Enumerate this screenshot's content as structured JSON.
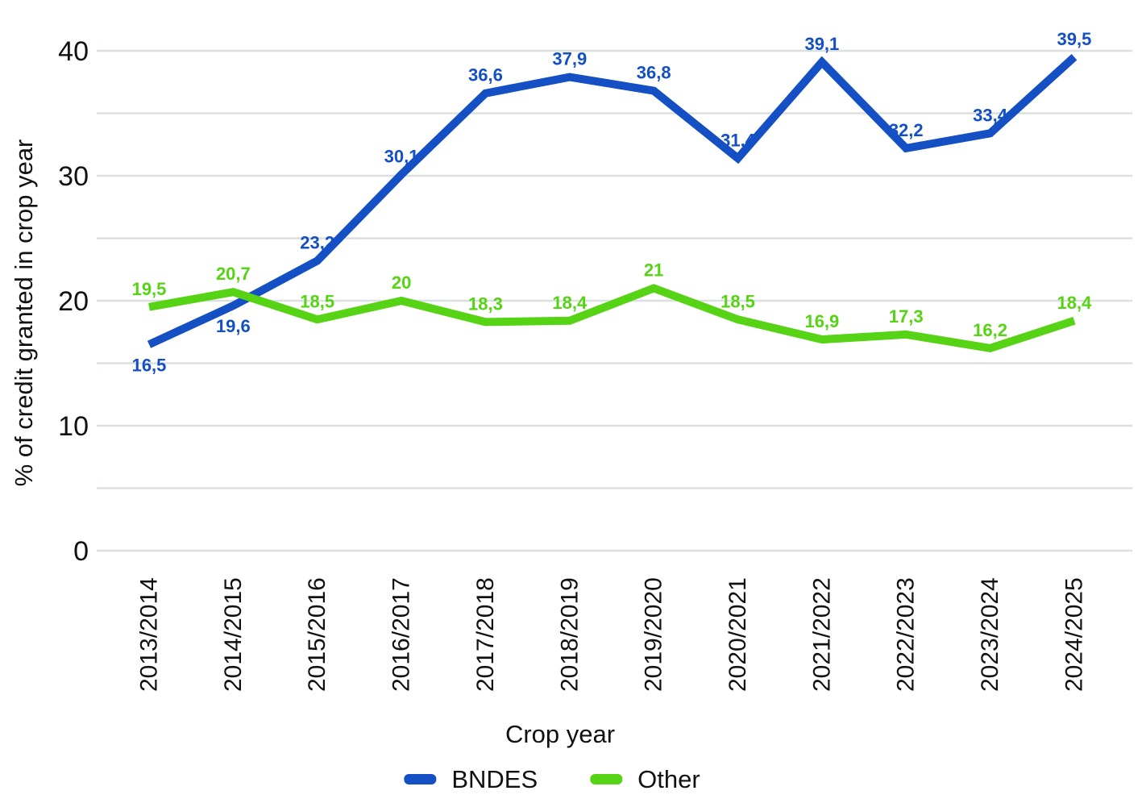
{
  "chart_data": {
    "type": "line",
    "title": "",
    "xlabel": "Crop year",
    "ylabel": "% of credit granted in crop year",
    "ylim": [
      0,
      40
    ],
    "y_major_ticks": [
      0,
      10,
      20,
      30,
      40
    ],
    "y_gridline_step": 5,
    "grid": true,
    "legend_position": "bottom",
    "background_color": "#ffffff",
    "gridline_color": "#dbe0df",
    "text_color": "#111111",
    "decimal_separator": ",",
    "categories": [
      "2013/2014",
      "2014/2015",
      "2015/2016",
      "2016/2017",
      "2017/2018",
      "2018/2019",
      "2019/2020",
      "2020/2021",
      "2021/2022",
      "2022/2023",
      "2023/2024",
      "2024/2025"
    ],
    "series": [
      {
        "name": "BNDES",
        "color": "#1450c4",
        "values": [
          16.5,
          19.6,
          23.2,
          30.1,
          36.6,
          37.9,
          36.8,
          31.4,
          39.1,
          32.2,
          33.4,
          39.5
        ],
        "labels": [
          "16,5",
          "19,6",
          "23,2",
          "30,1",
          "36,6",
          "37,9",
          "36,8",
          "31,4",
          "39,1",
          "32,2",
          "33,4",
          "39,5"
        ],
        "label_positions": [
          "below",
          "below",
          "above",
          "above",
          "above",
          "above",
          "above",
          "above",
          "above",
          "above",
          "above",
          "above"
        ]
      },
      {
        "name": "Other",
        "color": "#55d314",
        "values": [
          19.5,
          20.7,
          18.5,
          20,
          18.3,
          18.4,
          21,
          18.5,
          16.9,
          17.3,
          16.2,
          18.4
        ],
        "labels": [
          "19,5",
          "20,7",
          "18,5",
          "20",
          "18,3",
          "18,4",
          "21",
          "18,5",
          "16,9",
          "17,3",
          "16,2",
          "18,4"
        ],
        "label_positions": [
          "above",
          "above",
          "above",
          "above",
          "above",
          "above",
          "above",
          "above",
          "above",
          "above",
          "above",
          "above"
        ]
      }
    ]
  }
}
